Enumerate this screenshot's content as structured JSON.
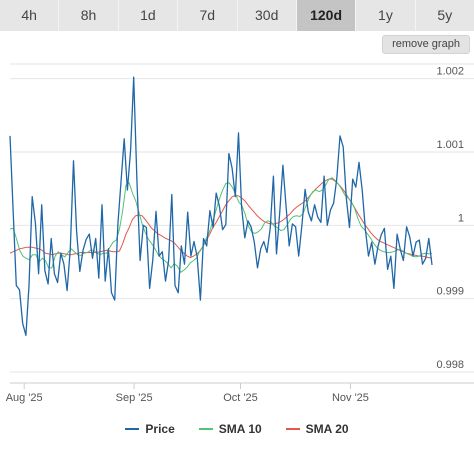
{
  "tabs": [
    {
      "label": "4h",
      "active": false
    },
    {
      "label": "8h",
      "active": false
    },
    {
      "label": "1d",
      "active": false
    },
    {
      "label": "7d",
      "active": false
    },
    {
      "label": "30d",
      "active": false
    },
    {
      "label": "120d",
      "active": true
    },
    {
      "label": "1y",
      "active": false
    },
    {
      "label": "5y",
      "active": false
    }
  ],
  "remove_button": "remove graph",
  "colors": {
    "price": "#1f67a8",
    "sma10": "#52c275",
    "sma20": "#e2584c",
    "grid": "#e6e6e6"
  },
  "chart_data": {
    "type": "line",
    "x_range": [
      "2025-07-28",
      "2025-11-24"
    ],
    "x_ticks": [
      {
        "date": "2025-08-01",
        "label": "Aug '25"
      },
      {
        "date": "2025-09-01",
        "label": "Sep '25"
      },
      {
        "date": "2025-10-01",
        "label": "Oct '25"
      },
      {
        "date": "2025-11-01",
        "label": "Nov '25"
      }
    ],
    "y_ticks": [
      "0.998",
      "0.999",
      "1",
      "1.001",
      "1.002"
    ],
    "ylim": [
      0.99785,
      1.0022
    ],
    "grid": true,
    "series": [
      {
        "name": "Price",
        "values": [
          1.00122,
          1.00018,
          0.99918,
          0.99912,
          0.99866,
          0.9985,
          0.99918,
          1.00039,
          1.00003,
          0.99934,
          1.00028,
          0.99938,
          0.9992,
          0.99982,
          0.99934,
          0.99922,
          0.99962,
          0.99947,
          0.99911,
          0.99968,
          1.00088,
          0.99992,
          0.99937,
          0.99966,
          0.99981,
          0.99988,
          0.99955,
          0.99982,
          0.99928,
          1.00028,
          0.99924,
          0.99968,
          0.99908,
          0.99898,
          1.00002,
          1.00061,
          1.00118,
          1.00048,
          1.00102,
          1.00202,
          1.00062,
          0.99952,
          1.0,
          0.99997,
          0.99914,
          0.99953,
          1.00019,
          0.99958,
          0.99964,
          0.99924,
          0.99952,
          1.00042,
          0.99918,
          0.99908,
          0.99972,
          0.99947,
          1.00018,
          0.99958,
          0.99978,
          0.99957,
          0.99898,
          0.99982,
          0.99972,
          1.0002,
          0.99997,
          1.00044,
          1.00026,
          0.99994,
          1.00001,
          1.00098,
          1.00078,
          1.00039,
          1.00126,
          1.00025,
          0.99983,
          1.00006,
          0.99998,
          0.99977,
          0.99942,
          0.99968,
          0.99978,
          0.99963,
          0.99996,
          1.00067,
          0.99961,
          1.00017,
          1.00082,
          1.00027,
          0.99972,
          1.00002,
          0.99998,
          0.99958,
          1.0,
          1.00049,
          1.00018,
          1.00006,
          1.00028,
          1.00011,
          1.00004,
          1.00067,
          1.0,
          1.00021,
          1.0003,
          1.00064,
          1.00122,
          1.00107,
          1.00037,
          0.99997,
          1.00063,
          1.00052,
          1.00086,
          1.00048,
          0.99994,
          0.99958,
          0.99977,
          0.99947,
          0.99972,
          0.99987,
          0.99996,
          0.9994,
          0.99958,
          0.99914,
          0.99988,
          0.99967,
          0.99952,
          0.99998,
          0.99984,
          0.99958,
          0.99977,
          0.9998,
          0.99947,
          0.99955,
          0.99982,
          0.99946
        ]
      },
      {
        "name": "SMA 10",
        "values": [
          0.99995,
          0.99996,
          0.99982,
          0.99966,
          0.99958,
          0.99955,
          0.99953,
          0.9996,
          0.9996,
          0.9995,
          0.99955,
          0.99952,
          0.99942,
          0.99942,
          0.99958,
          0.99964,
          0.9996,
          0.99957,
          0.99963,
          0.99968,
          0.99964,
          0.9996,
          0.99959,
          0.99962,
          0.99963,
          0.99966,
          0.99966,
          0.99962,
          0.9996,
          0.99962,
          0.99962,
          0.9997,
          0.99977,
          0.9998,
          0.99995,
          1.0002,
          1.00055,
          1.00058,
          1.00044,
          1.00034,
          1.00018,
          1.00002,
          0.9999,
          0.99981,
          0.99975,
          0.99968,
          0.9996,
          0.99955,
          0.99952,
          0.99948,
          0.99942,
          0.99948,
          0.99944,
          0.99936,
          0.99939,
          0.99943,
          0.99949,
          0.99952,
          0.99956,
          0.99966,
          0.99972,
          0.99983,
          0.99992,
          1.00006,
          1.00021,
          1.00036,
          1.00048,
          1.00057,
          1.00058,
          1.00052,
          1.00043,
          1.00032,
          1.00027,
          1.00015,
          0.99999,
          0.99991,
          0.99989,
          0.99991,
          0.99995,
          1.00003,
          1.00006,
          1.00005,
          0.99999,
          0.99997,
          0.99993,
          0.99994,
          1.0,
          1.00008,
          1.00012,
          1.00013,
          1.00012,
          1.00016,
          1.00028,
          1.00039,
          1.00046,
          1.00048,
          1.00046,
          1.00048,
          1.00055,
          1.00063,
          1.00065,
          1.00061,
          1.00056,
          1.00049,
          1.00041,
          1.00037,
          1.00032,
          1.00023,
          1.00009,
          0.99999,
          0.99994,
          0.99988,
          0.99982,
          0.99975,
          0.99969,
          0.99966,
          0.99964,
          0.99963,
          0.99963,
          0.99964,
          0.99966,
          0.99967,
          0.99965,
          0.99962,
          0.9996,
          0.99958,
          0.99957,
          0.99958,
          0.99961,
          0.99962,
          0.99961,
          0.99962
        ]
      },
      {
        "name": "SMA 20",
        "values": [
          0.99962,
          0.99964,
          0.99966,
          0.99968,
          0.99969,
          0.9997,
          0.9997,
          0.9997,
          0.99969,
          0.99968,
          0.99966,
          0.99962,
          0.99961,
          0.9996,
          0.99961,
          0.99962,
          0.99962,
          0.99961,
          0.9996,
          0.9996,
          0.99961,
          0.99962,
          0.99963,
          0.99963,
          0.99963,
          0.99963,
          0.99963,
          0.99963,
          0.99964,
          0.99965,
          0.99966,
          0.99965,
          0.99964,
          0.99964,
          0.99965,
          0.99975,
          0.99988,
          0.99997,
          1.00008,
          1.00013,
          1.00014,
          1.00013,
          1.00008,
          1.00002,
          0.99996,
          0.99992,
          0.99988,
          0.99986,
          0.99983,
          0.99981,
          0.99979,
          0.99976,
          0.99971,
          0.99966,
          0.99962,
          0.99958,
          0.99956,
          0.99958,
          0.99961,
          0.99965,
          0.99972,
          0.9998,
          0.99988,
          0.99997,
          1.00004,
          1.00012,
          1.0002,
          1.00028,
          1.00034,
          1.00039,
          1.00041,
          1.0004,
          1.00037,
          1.00033,
          1.00027,
          1.00022,
          1.00017,
          1.00012,
          1.00008,
          1.00005,
          1.00003,
          1.00002,
          1.00002,
          1.00003,
          1.00005,
          1.00008,
          1.00012,
          1.00016,
          1.00021,
          1.00025,
          1.00028,
          1.00031,
          1.00035,
          1.0004,
          1.00045,
          1.0005,
          1.00054,
          1.00058,
          1.00061,
          1.00063,
          1.00063,
          1.0006,
          1.00056,
          1.00051,
          1.00045,
          1.00038,
          1.00031,
          1.00024,
          1.00016,
          1.00009,
          1.00002,
          0.99996,
          0.9999,
          0.99985,
          0.99981,
          0.99978,
          0.99976,
          0.99974,
          0.99972,
          0.9997,
          0.99968,
          0.99966,
          0.99964,
          0.99962,
          0.99961,
          0.9996,
          0.99959,
          0.99958,
          0.99958,
          0.99957,
          0.99956,
          0.99955
        ]
      }
    ]
  }
}
